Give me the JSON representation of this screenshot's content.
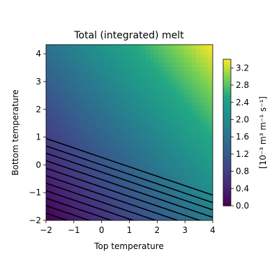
{
  "chart_data": {
    "type": "heatmap",
    "title": "Total (integrated) melt",
    "xlabel": "Top temperature",
    "ylabel": "Bottom temperature",
    "xlim": [
      -2,
      4
    ],
    "ylim": [
      -2,
      4.33
    ],
    "x_ticks": [
      -2,
      -1,
      0,
      1,
      2,
      3,
      4
    ],
    "x_tick_labels": [
      "−2",
      "−1",
      "0",
      "1",
      "2",
      "3",
      "4"
    ],
    "y_ticks": [
      -2,
      -1,
      0,
      1,
      2,
      3,
      4
    ],
    "y_tick_labels": [
      "−2",
      "−1",
      "0",
      "1",
      "2",
      "3",
      "4"
    ],
    "colorbar": {
      "label": "[10⁻³ m³ m⁻¹ s⁻¹]",
      "min": 0.0,
      "max": 3.4,
      "ticks": [
        0.0,
        0.4,
        0.8,
        1.2,
        1.6,
        2.0,
        2.4,
        2.8,
        3.2
      ],
      "tick_labels": [
        "0.0",
        "0.4",
        "0.8",
        "1.2",
        "1.6",
        "2.0",
        "2.4",
        "2.8",
        "3.2"
      ]
    },
    "colormap": "viridis",
    "field_model": {
      "value_at_bottom_left": 0.0,
      "value_at_top_right": 3.4,
      "d_value_d_top": 0.3,
      "d_value_d_bottom": 0.25
    },
    "contour_lines": {
      "color": "#000000",
      "slope": -0.34,
      "y_intercepts_at_x_minus_2": [
        0.95,
        0.68,
        0.42,
        0.15,
        -0.12,
        -0.39,
        -0.66,
        -0.93,
        -1.2,
        -1.47,
        -1.74
      ]
    }
  }
}
